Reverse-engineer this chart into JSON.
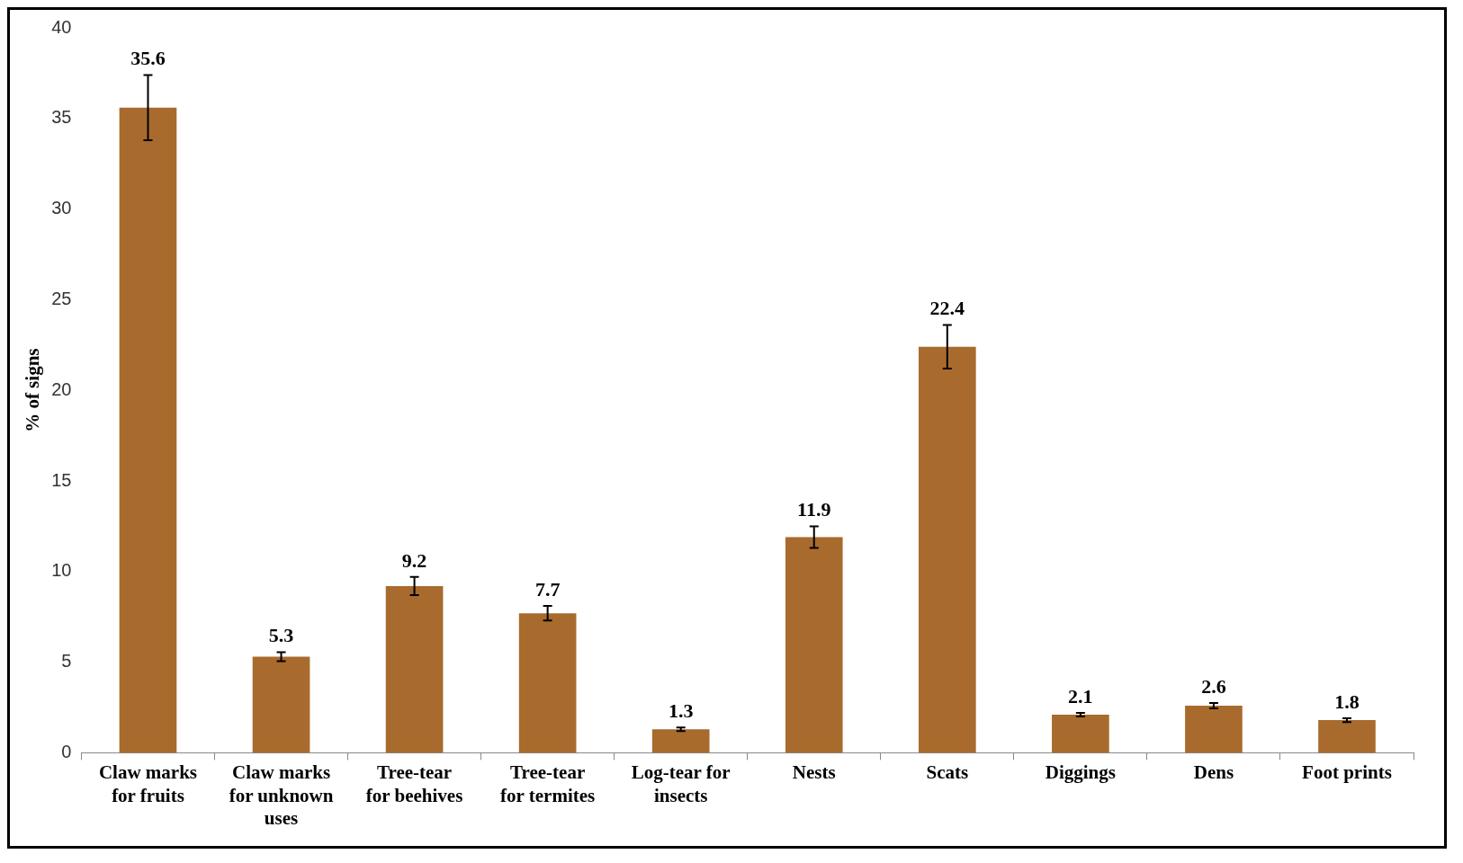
{
  "chart_data": {
    "type": "bar",
    "ylabel": "% of signs",
    "categories": [
      "Claw marks for fruits",
      "Claw marks for unknown uses",
      "Tree-tear for beehives",
      "Tree-tear for termites",
      "Log-tear for insects",
      "Nests",
      "Scats",
      "Diggings",
      "Dens",
      "Foot prints"
    ],
    "values": [
      35.6,
      5.3,
      9.2,
      7.7,
      1.3,
      11.9,
      22.4,
      2.1,
      2.6,
      1.8
    ],
    "errors": [
      1.8,
      0.25,
      0.5,
      0.4,
      0.1,
      0.6,
      1.2,
      0.1,
      0.15,
      0.1
    ],
    "color": "#a86b2d",
    "ylim": [
      0,
      40
    ],
    "yticks": [
      0,
      5,
      10,
      15,
      20,
      25,
      30,
      35,
      40
    ],
    "grid": false,
    "data_labels": true
  }
}
